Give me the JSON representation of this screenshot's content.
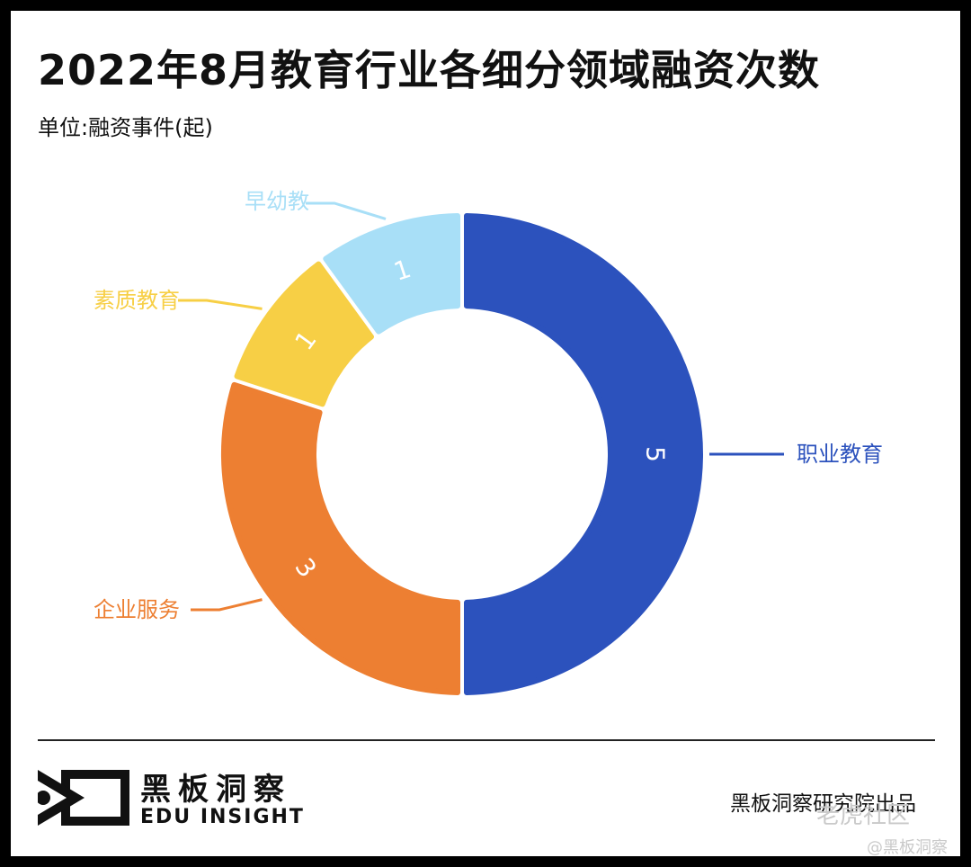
{
  "header": {
    "title": "2022年8月教育行业各细分领域融资次数",
    "unit": "单位:融资事件(起)"
  },
  "chart_data": {
    "type": "pie",
    "variant": "donut",
    "categories": [
      "职业教育",
      "企业服务",
      "素质教育",
      "早幼教"
    ],
    "values": [
      5,
      3,
      1,
      1
    ],
    "colors": [
      "#2c52bd",
      "#ed7f32",
      "#f7cf45",
      "#a8dff7"
    ],
    "data_labels": [
      "5",
      "3",
      "1",
      "1"
    ],
    "legend": "callouts"
  },
  "footer": {
    "brand_cn": "黑板洞察",
    "brand_en": "EDU INSIGHT",
    "credit": "黑板洞察研究院出品",
    "watermark_main": "老虎社区",
    "watermark_sub": "@黑板洞察"
  }
}
